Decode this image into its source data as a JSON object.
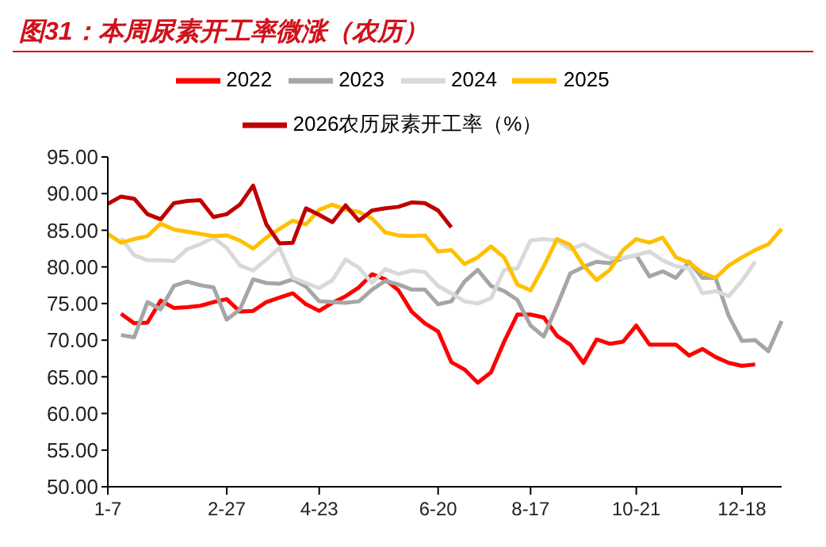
{
  "chart_data": {
    "type": "line",
    "title": "图31：本周尿素开工率微涨（农历）",
    "categories": [
      "1-7",
      null,
      null,
      null,
      null,
      null,
      null,
      null,
      null,
      "2-27",
      null,
      null,
      null,
      null,
      null,
      null,
      "4-23",
      null,
      null,
      null,
      null,
      null,
      null,
      null,
      null,
      "6-20",
      null,
      null,
      null,
      null,
      null,
      null,
      "8-17",
      null,
      null,
      null,
      null,
      null,
      null,
      null,
      "10-21",
      null,
      null,
      null,
      null,
      null,
      null,
      null,
      "12-18",
      null,
      null,
      null
    ],
    "ylim": [
      50,
      95
    ],
    "yticks": [
      {
        "value": 50,
        "label": "50.00"
      },
      {
        "value": 55,
        "label": "55.00"
      },
      {
        "value": 60,
        "label": "60.00"
      },
      {
        "value": 65,
        "label": "65.00"
      },
      {
        "value": 70,
        "label": "70.00"
      },
      {
        "value": 75,
        "label": "75.00"
      },
      {
        "value": 80,
        "label": "80.00"
      },
      {
        "value": 85,
        "label": "85.00"
      },
      {
        "value": 90,
        "label": "90.00"
      },
      {
        "value": 95,
        "label": "95.00"
      }
    ],
    "grid": false,
    "legend": "top",
    "marker": "none",
    "line_style": "solid",
    "series": [
      {
        "name": "2022",
        "color": "#ff0000",
        "values": [
          null,
          73.6,
          72.3,
          72.4,
          75.4,
          74.4,
          74.5,
          74.7,
          75.2,
          75.6,
          73.9,
          74.0,
          75.2,
          75.8,
          76.4,
          74.9,
          74.0,
          75.1,
          76.0,
          77.2,
          79.0,
          78.3,
          76.8,
          73.9,
          72.3,
          71.2,
          67.0,
          66.0,
          64.2,
          65.6,
          69.8,
          73.5,
          73.5,
          73.1,
          70.6,
          69.4,
          66.9,
          70.1,
          69.5,
          69.8,
          72.0,
          69.4,
          69.4,
          69.4,
          67.9,
          68.8,
          67.7,
          66.9,
          66.5,
          66.7,
          null,
          null
        ]
      },
      {
        "name": "2023",
        "color": "#a6a6a6",
        "values": [
          null,
          70.7,
          70.4,
          75.2,
          74.2,
          77.4,
          78.0,
          77.5,
          77.2,
          72.8,
          74.2,
          78.3,
          77.8,
          77.7,
          78.3,
          77.3,
          75.3,
          75.2,
          75.1,
          75.3,
          76.9,
          78.1,
          77.6,
          76.9,
          76.9,
          74.9,
          75.3,
          78.0,
          79.6,
          77.4,
          76.7,
          75.5,
          72.0,
          70.5,
          74.7,
          79.1,
          80.0,
          80.7,
          80.5,
          81.2,
          81.6,
          78.7,
          79.4,
          78.5,
          80.7,
          78.5,
          78.5,
          73.3,
          69.9,
          70.0,
          68.5,
          72.6
        ]
      },
      {
        "name": "2024",
        "color": "#d9d9d9",
        "values": [
          null,
          83.9,
          81.6,
          80.9,
          80.9,
          80.8,
          82.4,
          83.1,
          84.0,
          82.6,
          80.2,
          79.5,
          81.0,
          82.6,
          78.5,
          77.8,
          77.1,
          78.2,
          81.0,
          79.9,
          77.8,
          79.7,
          79.0,
          79.5,
          79.3,
          77.4,
          76.4,
          75.3,
          75.0,
          75.7,
          79.6,
          79.8,
          83.6,
          83.8,
          83.6,
          82.4,
          83.1,
          82.1,
          81.2,
          81.2,
          81.6,
          82.1,
          80.9,
          80.1,
          79.8,
          76.4,
          76.7,
          76.0,
          78.1,
          80.7,
          null,
          null
        ]
      },
      {
        "name": "2025",
        "color": "#ffc000",
        "values": [
          84.5,
          83.3,
          83.8,
          84.2,
          85.9,
          85.1,
          84.8,
          84.5,
          84.2,
          84.3,
          83.6,
          82.5,
          84.0,
          85.2,
          86.3,
          85.8,
          87.8,
          88.5,
          87.8,
          87.5,
          86.6,
          84.7,
          84.3,
          84.2,
          84.3,
          82.1,
          82.3,
          80.4,
          81.3,
          82.8,
          81.3,
          77.6,
          76.8,
          80.1,
          83.8,
          83.0,
          80.2,
          78.2,
          79.6,
          82.3,
          83.8,
          83.3,
          84.0,
          81.3,
          80.6,
          79.2,
          78.5,
          80.2,
          81.3,
          82.3,
          83.1,
          85.2
        ]
      },
      {
        "name": "2026农历尿素开工率（%）",
        "color": "#c00000",
        "values": [
          88.6,
          89.6,
          89.3,
          87.2,
          86.5,
          88.7,
          89.0,
          89.1,
          86.8,
          87.2,
          88.5,
          91.1,
          85.8,
          83.2,
          83.3,
          88.0,
          87.1,
          86.1,
          88.4,
          86.3,
          87.7,
          88.0,
          88.2,
          88.8,
          88.7,
          87.7,
          85.4,
          null,
          null,
          null,
          null,
          null,
          null,
          null,
          null,
          null,
          null,
          null,
          null,
          null,
          null,
          null,
          null,
          null,
          null,
          null,
          null,
          null,
          null,
          null,
          null,
          null
        ]
      }
    ]
  }
}
